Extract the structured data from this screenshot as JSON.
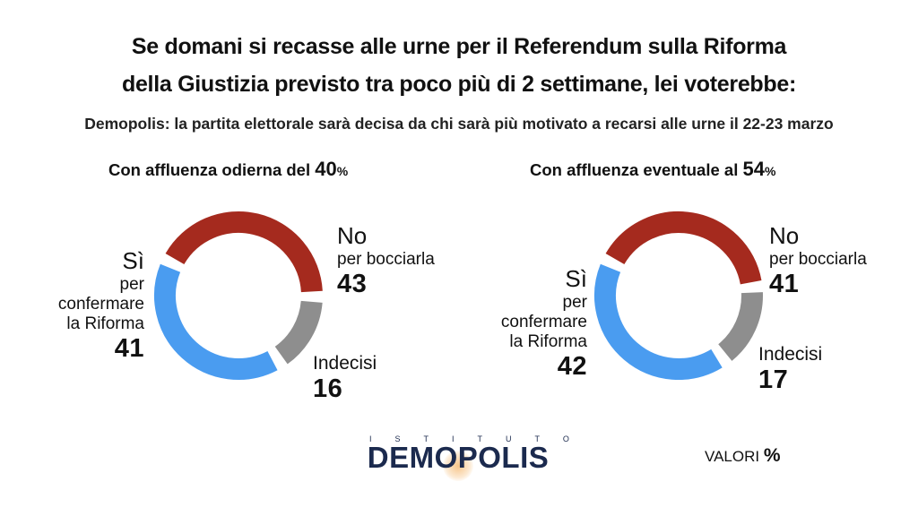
{
  "title_line1": "Se domani si recasse alle urne per il Referendum sulla Riforma",
  "title_line2": "della Giustizia previsto tra poco più di 2 settimane, lei voterebbe:",
  "subtitle": "Demopolis: la partita elettorale sarà decisa da chi sarà più motivato a recarsi alle urne il 22-23 marzo",
  "footer": {
    "logo_top": "ISTITUTO",
    "logo_main": "DEMOPOLIS",
    "valori_label": "VALORI",
    "valori_pct": "%"
  },
  "colors": {
    "no": "#a52a1e",
    "si": "#4a9cf0",
    "indecisi": "#8e8e8e"
  },
  "chart_data": [
    {
      "type": "pie",
      "title_prefix": "Con affluenza odierna del",
      "title_value": "40",
      "title_unit": "%",
      "series": [
        {
          "name": "No",
          "sub": "per bocciarla",
          "value": 43
        },
        {
          "name": "Indecisi",
          "value": 16
        },
        {
          "name": "Sì",
          "sub_lines": [
            "per",
            "confermare",
            "la Riforma"
          ],
          "value": 41
        }
      ]
    },
    {
      "type": "pie",
      "title_prefix": "Con affluenza eventuale al",
      "title_value": "54",
      "title_unit": "%",
      "series": [
        {
          "name": "No",
          "sub": "per bocciarla",
          "value": 41
        },
        {
          "name": "Indecisi",
          "value": 17
        },
        {
          "name": "Sì",
          "sub_lines": [
            "per",
            "confermare",
            "la Riforma"
          ],
          "value": 42
        }
      ]
    }
  ]
}
